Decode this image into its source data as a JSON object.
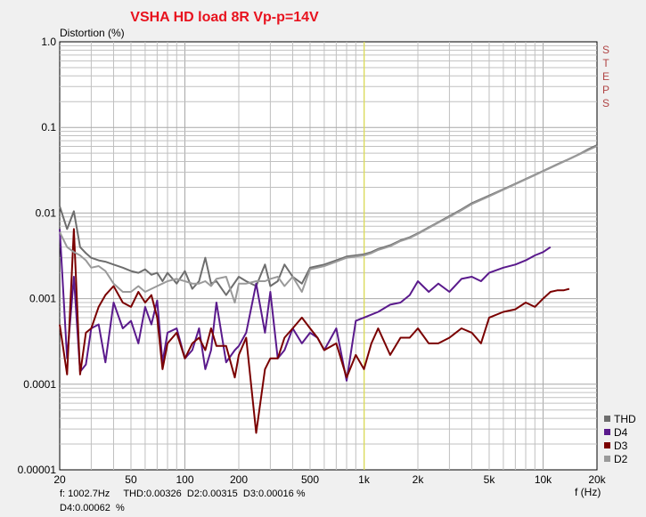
{
  "chart_data": {
    "type": "line",
    "title": "VSHA HD load 8R Vp-p=14V",
    "ylabel": "Distortion (%)",
    "xlabel": "f (Hz)",
    "xscale": "log",
    "yscale": "log",
    "xlim": [
      20,
      20000
    ],
    "ylim": [
      1e-05,
      1.0
    ],
    "grid": true,
    "legend_position": "bottom-right",
    "side_label": [
      "S",
      "T",
      "E",
      "P",
      "S"
    ],
    "x_ticks": [
      {
        "v": 20,
        "label": "20"
      },
      {
        "v": 50,
        "label": "50"
      },
      {
        "v": 100,
        "label": "100"
      },
      {
        "v": 200,
        "label": "200"
      },
      {
        "v": 500,
        "label": "500"
      },
      {
        "v": 1000,
        "label": "1k"
      },
      {
        "v": 2000,
        "label": "2k"
      },
      {
        "v": 5000,
        "label": "5k"
      },
      {
        "v": 10000,
        "label": "10k"
      },
      {
        "v": 20000,
        "label": "20k"
      }
    ],
    "y_ticks": [
      {
        "v": 1.0,
        "label": "1.0"
      },
      {
        "v": 0.1,
        "label": "0.1"
      },
      {
        "v": 0.01,
        "label": "0.01"
      },
      {
        "v": 0.001,
        "label": "0.001"
      },
      {
        "v": 0.0001,
        "label": "0.0001"
      },
      {
        "v": 1e-05,
        "label": "0.00001"
      }
    ],
    "cursor_x": 1002.7,
    "colors": {
      "title": "#e8121e",
      "steps": "#b04545",
      "cursor": "#e0e050",
      "grid": "#c0c0c0",
      "plot_bg": "#ffffff"
    },
    "series": [
      {
        "name": "THD",
        "color": "#6e6e6e",
        "x": [
          20,
          22,
          24,
          26,
          28,
          30,
          33,
          36,
          40,
          45,
          50,
          55,
          60,
          65,
          70,
          75,
          80,
          90,
          100,
          110,
          120,
          130,
          140,
          150,
          170,
          200,
          220,
          250,
          280,
          300,
          330,
          360,
          400,
          450,
          500,
          550,
          600,
          700,
          800,
          900,
          1000,
          1100,
          1200,
          1400,
          1600,
          1800,
          2000,
          2300,
          2600,
          3000,
          3500,
          4000,
          5000,
          6000,
          7000,
          8000,
          9000,
          10000,
          12000,
          14000,
          16000,
          18000,
          20000
        ],
        "y": [
          0.012,
          0.0065,
          0.0105,
          0.004,
          0.0034,
          0.003,
          0.0028,
          0.0027,
          0.0025,
          0.0023,
          0.0021,
          0.002,
          0.0022,
          0.0019,
          0.002,
          0.0016,
          0.002,
          0.0015,
          0.0021,
          0.0013,
          0.0016,
          0.003,
          0.0015,
          0.0016,
          0.0011,
          0.0018,
          0.0016,
          0.0014,
          0.0025,
          0.0014,
          0.0016,
          0.0025,
          0.0018,
          0.0015,
          0.0023,
          0.0024,
          0.0025,
          0.0028,
          0.0031,
          0.0032,
          0.0033,
          0.0035,
          0.0038,
          0.0042,
          0.0048,
          0.0052,
          0.0058,
          0.0068,
          0.0078,
          0.0092,
          0.011,
          0.013,
          0.016,
          0.019,
          0.022,
          0.025,
          0.028,
          0.031,
          0.037,
          0.043,
          0.049,
          0.056,
          0.062
        ]
      },
      {
        "name": "D4",
        "color": "#5a1a8c",
        "x": [
          20,
          22,
          24,
          26,
          28,
          30,
          33,
          36,
          40,
          45,
          50,
          55,
          60,
          65,
          70,
          75,
          80,
          90,
          100,
          110,
          120,
          130,
          140,
          150,
          170,
          190,
          200,
          220,
          250,
          280,
          300,
          330,
          360,
          400,
          450,
          500,
          550,
          600,
          700,
          800,
          900,
          1000,
          1100,
          1200,
          1400,
          1600,
          1800,
          2000,
          2300,
          2600,
          3000,
          3500,
          4000,
          4500,
          5000,
          6000,
          7000,
          8000,
          9000,
          10000,
          11000
        ],
        "y": [
          0.0065,
          0.0002,
          0.0018,
          0.00014,
          0.00017,
          0.00045,
          0.0005,
          0.00018,
          0.0009,
          0.00045,
          0.00055,
          0.0003,
          0.0008,
          0.0005,
          0.00095,
          0.00018,
          0.0004,
          0.00045,
          0.0002,
          0.00025,
          0.00045,
          0.00015,
          0.00025,
          0.0009,
          0.00018,
          0.00025,
          0.00028,
          0.0004,
          0.0015,
          0.0004,
          0.0012,
          0.0002,
          0.00025,
          0.00045,
          0.0003,
          0.0004,
          0.00035,
          0.00025,
          0.00045,
          0.00011,
          0.00055,
          0.0006,
          0.00065,
          0.0007,
          0.00085,
          0.0009,
          0.0011,
          0.0016,
          0.0012,
          0.0015,
          0.0012,
          0.0017,
          0.0018,
          0.0016,
          0.002,
          0.0023,
          0.0025,
          0.0028,
          0.0032,
          0.0035,
          0.004
        ]
      },
      {
        "name": "D3",
        "color": "#7a0000",
        "x": [
          20,
          22,
          24,
          26,
          28,
          30,
          33,
          36,
          40,
          45,
          50,
          55,
          60,
          65,
          70,
          75,
          80,
          90,
          100,
          110,
          120,
          130,
          140,
          150,
          170,
          190,
          200,
          220,
          250,
          280,
          300,
          330,
          360,
          400,
          450,
          500,
          550,
          600,
          700,
          800,
          900,
          1000,
          1100,
          1200,
          1400,
          1600,
          1800,
          2000,
          2300,
          2600,
          3000,
          3500,
          4000,
          4500,
          5000,
          6000,
          7000,
          8000,
          9000,
          10000,
          11000,
          12000,
          13000,
          14000
        ],
        "y": [
          0.0005,
          0.00013,
          0.0065,
          0.00013,
          0.0004,
          0.00045,
          0.0008,
          0.0011,
          0.0014,
          0.0009,
          0.0008,
          0.0012,
          0.0009,
          0.0011,
          0.0006,
          0.00015,
          0.0003,
          0.0004,
          0.0002,
          0.0003,
          0.00035,
          0.00025,
          0.00045,
          0.00028,
          0.00028,
          0.00012,
          0.00022,
          0.00035,
          2.7e-05,
          0.00015,
          0.0002,
          0.0002,
          0.00035,
          0.00045,
          0.0006,
          0.00045,
          0.00035,
          0.00025,
          0.0003,
          0.00012,
          0.00022,
          0.00015,
          0.0003,
          0.00045,
          0.00022,
          0.00035,
          0.00035,
          0.00045,
          0.0003,
          0.0003,
          0.00035,
          0.00045,
          0.0004,
          0.0003,
          0.0006,
          0.0007,
          0.00075,
          0.0009,
          0.0008,
          0.001,
          0.0012,
          0.00125,
          0.00125,
          0.0013
        ]
      },
      {
        "name": "D2",
        "color": "#9a9a9a",
        "x": [
          20,
          22,
          24,
          26,
          28,
          30,
          33,
          36,
          40,
          45,
          50,
          55,
          60,
          65,
          70,
          75,
          80,
          90,
          100,
          110,
          120,
          130,
          140,
          150,
          170,
          190,
          200,
          220,
          250,
          280,
          300,
          330,
          360,
          400,
          450,
          500,
          550,
          600,
          700,
          800,
          900,
          1000,
          1100,
          1200,
          1400,
          1600,
          1800,
          2000,
          2300,
          2600,
          3000,
          3500,
          4000,
          5000,
          6000,
          7000,
          8000,
          9000,
          10000,
          12000,
          14000,
          16000,
          18000,
          20000
        ],
        "y": [
          0.006,
          0.004,
          0.0035,
          0.0032,
          0.0028,
          0.0023,
          0.0024,
          0.0021,
          0.0015,
          0.0012,
          0.0012,
          0.0014,
          0.0012,
          0.0013,
          0.0014,
          0.0015,
          0.0016,
          0.0017,
          0.0016,
          0.0015,
          0.0015,
          0.0016,
          0.0014,
          0.0017,
          0.0018,
          0.0009,
          0.0015,
          0.0015,
          0.0016,
          0.0016,
          0.0017,
          0.0018,
          0.0014,
          0.0018,
          0.0012,
          0.0022,
          0.0023,
          0.0024,
          0.0027,
          0.003,
          0.0031,
          0.0032,
          0.0034,
          0.0037,
          0.0041,
          0.0047,
          0.0051,
          0.0057,
          0.0067,
          0.0077,
          0.009,
          0.0108,
          0.0127,
          0.0157,
          0.0187,
          0.0217,
          0.0247,
          0.0277,
          0.0307,
          0.0367,
          0.0427,
          0.0487,
          0.0547,
          0.0607
        ]
      }
    ]
  },
  "readout": {
    "line1": "f: 1002.7Hz     THD:0.00326  D2:0.00315  D3:0.00016 %",
    "line2": "D4:0.00062  %"
  }
}
